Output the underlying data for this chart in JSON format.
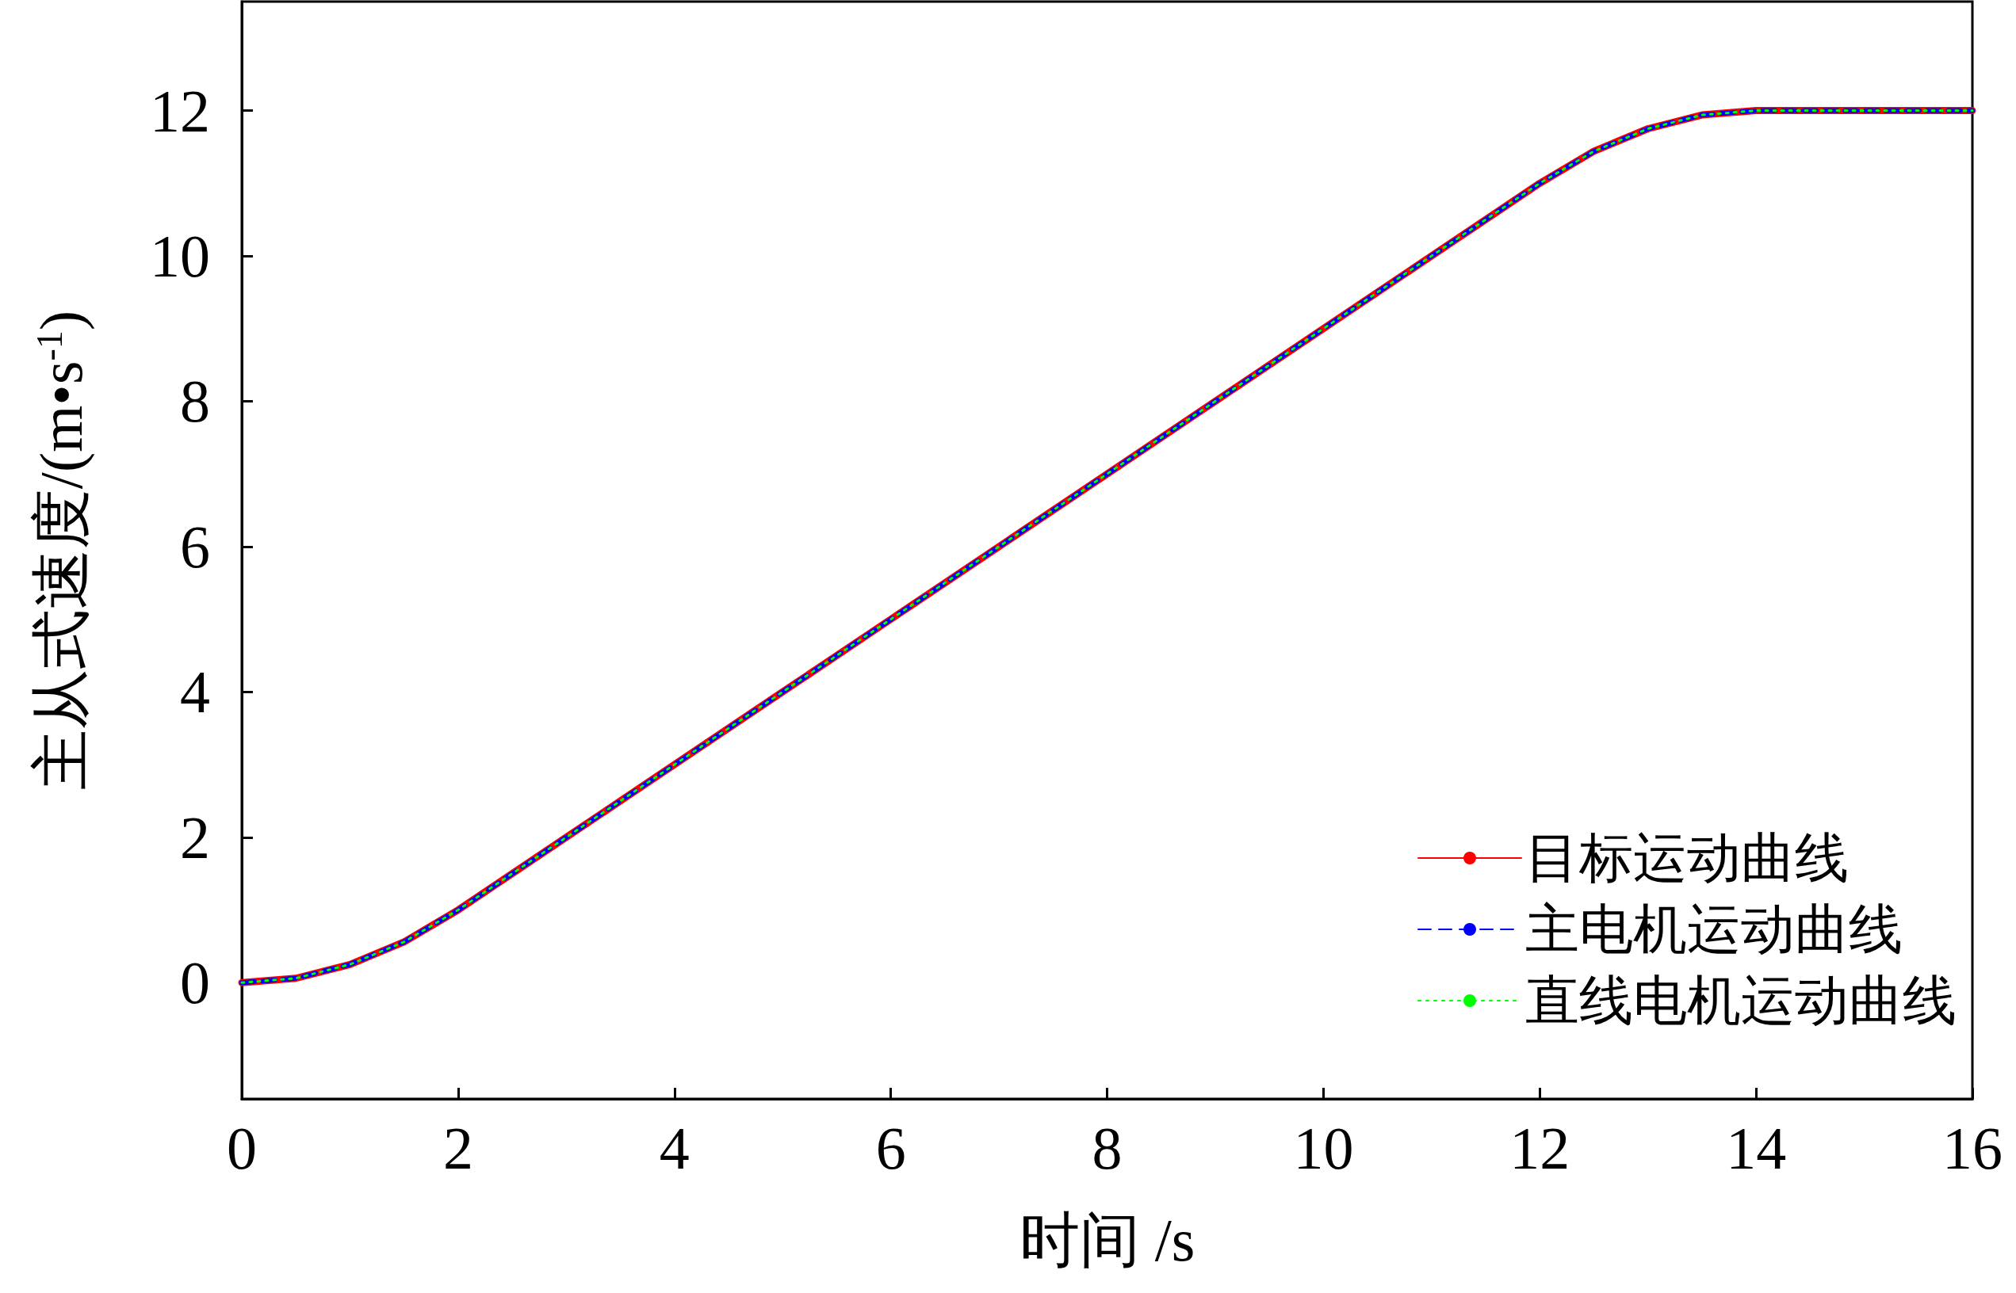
{
  "chart_data": {
    "type": "line",
    "xlabel": "时间 /s",
    "ylabel": "主从式速度/(m•s$^{-1}$)",
    "x": [
      0,
      0.5,
      1,
      1.5,
      2,
      3,
      4,
      5,
      6,
      7,
      8,
      9,
      10,
      11,
      12,
      12.5,
      13,
      13.5,
      14,
      15,
      16
    ],
    "series": [
      {
        "name": "目标运动曲线",
        "color": "#ff0000",
        "line_style": "solid",
        "values": [
          0,
          0.06,
          0.25,
          0.56,
          1,
          2,
          3,
          4,
          5,
          6,
          7,
          8,
          9,
          10,
          11,
          11.44,
          11.75,
          11.94,
          12,
          12,
          12
        ]
      },
      {
        "name": "主电机运动曲线",
        "color": "#0000ff",
        "line_style": "dashed",
        "values": [
          0,
          0.06,
          0.25,
          0.56,
          1,
          2,
          3,
          4,
          5,
          6,
          7,
          8,
          9,
          10,
          11,
          11.44,
          11.75,
          11.94,
          12,
          12,
          12
        ]
      },
      {
        "name": "直线电机运动曲线",
        "color": "#00ff00",
        "line_style": "dotted",
        "values": [
          0,
          0.06,
          0.25,
          0.56,
          1,
          2,
          3,
          4,
          5,
          6,
          7,
          8,
          9,
          10,
          11,
          11.44,
          11.75,
          11.94,
          12,
          12,
          12
        ]
      }
    ],
    "xlim": [
      0,
      16
    ],
    "xticks": [
      0,
      2,
      4,
      6,
      8,
      10,
      12,
      14,
      16
    ],
    "ylim": [
      -1.6,
      13.5
    ],
    "yticks": [
      0,
      2,
      4,
      6,
      8,
      10,
      12
    ],
    "legend": "bottom right",
    "grid": false,
    "marker": "none"
  }
}
